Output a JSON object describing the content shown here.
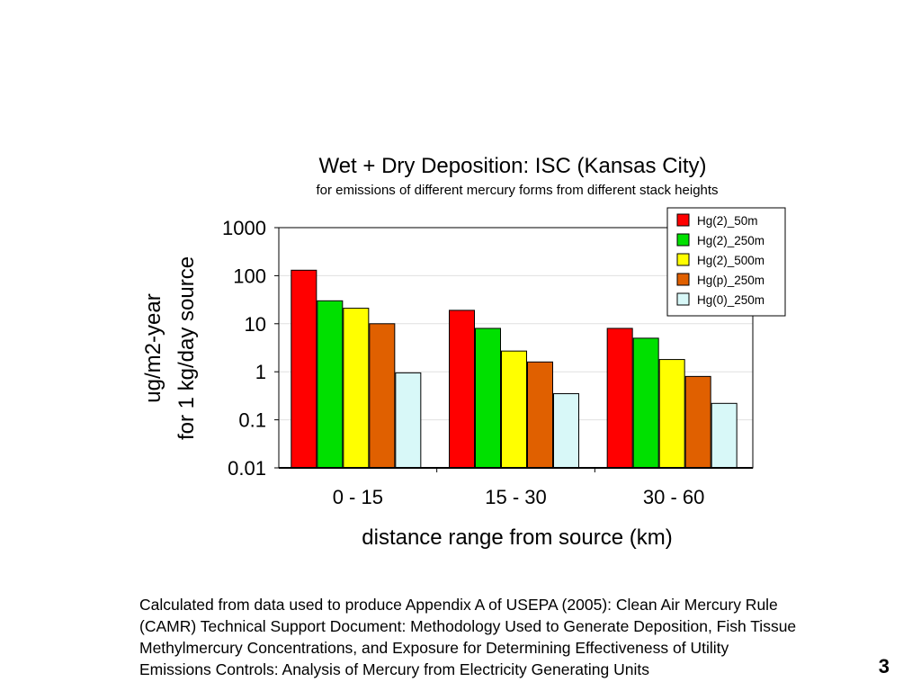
{
  "chart_data": {
    "type": "bar",
    "title": "Wet + Dry Deposition: ISC (Kansas City)",
    "subtitle": "for emissions of different mercury forms from different stack heights",
    "ylabel": [
      "ug/m2-year",
      "for 1 kg/day source"
    ],
    "xlabel": "distance range from source (km)",
    "y_scale": "log",
    "ylim": [
      0.01,
      1000
    ],
    "yticks": [
      "0.01",
      "0.1",
      "1",
      "10",
      "100",
      "1000"
    ],
    "categories": [
      "0 - 15",
      "15 - 30",
      "30 - 60"
    ],
    "grid": true,
    "legend_position": "top-right",
    "series": [
      {
        "name": "Hg(2)_50m",
        "color": "#ff0000",
        "values": [
          130,
          19,
          8
        ]
      },
      {
        "name": "Hg(2)_250m",
        "color": "#00e000",
        "values": [
          30,
          8,
          5
        ]
      },
      {
        "name": "Hg(2)_500m",
        "color": "#ffff00",
        "values": [
          21,
          2.7,
          1.8
        ]
      },
      {
        "name": "Hg(p)_250m",
        "color": "#e06000",
        "values": [
          10,
          1.6,
          0.8
        ]
      },
      {
        "name": "Hg(0)_250m",
        "color": "#d8f8f8",
        "values": [
          0.95,
          0.35,
          0.22
        ]
      }
    ]
  },
  "caption": {
    "lines": [
      "Calculated from data used to produce Appendix A of USEPA (2005): Clean Air Mercury Rule",
      "(CAMR) Technical Support Document: Methodology Used to Generate Deposition, Fish Tissue",
      "Methylmercury Concentrations, and Exposure for Determining Effectiveness of Utility",
      "Emissions Controls: Analysis of Mercury from Electricity Generating Units"
    ]
  },
  "page_number": "3"
}
